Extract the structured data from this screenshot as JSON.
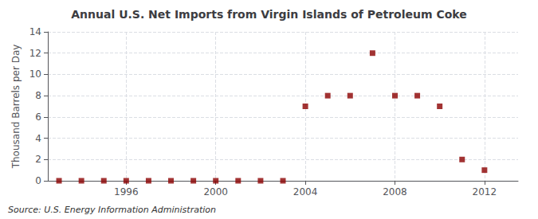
{
  "chart_data": {
    "type": "scatter",
    "title": "Annual U.S. Net Imports from Virgin Islands of Petroleum Coke",
    "ylabel": "Thousand Barrels per Day",
    "source": "Source: U.S. Energy Information Administration",
    "x": [
      1993,
      1994,
      1995,
      1996,
      1997,
      1998,
      1999,
      2000,
      2001,
      2002,
      2003,
      2004,
      2005,
      2006,
      2007,
      2008,
      2009,
      2010,
      2011,
      2012
    ],
    "values": [
      0,
      0,
      0,
      0,
      0,
      0,
      0,
      0,
      0,
      0,
      0,
      7,
      8,
      8,
      12,
      8,
      8,
      7,
      2,
      1
    ],
    "color": "#8B0000",
    "marker": "square",
    "xlim": [
      1992.5,
      2013.5
    ],
    "xticks": [
      1996,
      2000,
      2004,
      2008,
      2012
    ],
    "ylim": [
      0,
      14
    ],
    "yticks": [
      0,
      2,
      4,
      6,
      8,
      10,
      12,
      14
    ],
    "grid": true
  }
}
